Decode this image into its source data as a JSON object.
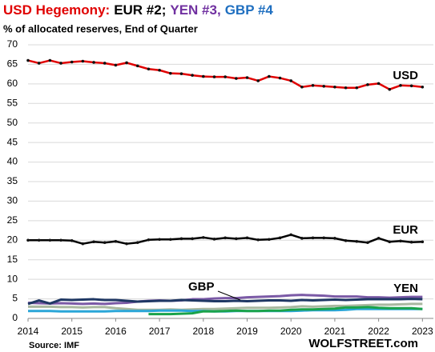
{
  "chart_data": {
    "type": "line",
    "title": [
      "USD Hegemony:",
      "EUR #2;",
      "YEN #3,",
      "GBP #4"
    ],
    "title_colors": [
      "#e00000",
      "#000000",
      "#7030a0",
      "#1f6fc0"
    ],
    "subtitle": "% of allocated reserves, End of Quarter",
    "source": "Source: IMF",
    "credit": "WOLFSTREET.com",
    "x": [
      2014,
      2014.25,
      2014.5,
      2014.75,
      2015,
      2015.25,
      2015.5,
      2015.75,
      2016,
      2016.25,
      2016.5,
      2016.75,
      2017,
      2017.25,
      2017.5,
      2017.75,
      2018,
      2018.25,
      2018.5,
      2018.75,
      2019,
      2019.25,
      2019.5,
      2019.75,
      2020,
      2020.25,
      2020.5,
      2020.75,
      2021,
      2021.25,
      2021.5,
      2021.75,
      2022,
      2022.25,
      2022.5,
      2022.75,
      2023
    ],
    "series": [
      {
        "name": "USD",
        "color": "#e00000",
        "markers": true,
        "values": [
          66,
          65.3,
          66,
          65.3,
          65.6,
          65.8,
          65.5,
          65.3,
          64.8,
          65.4,
          64.6,
          63.8,
          63.5,
          62.7,
          62.6,
          62.2,
          61.9,
          61.8,
          61.8,
          61.4,
          61.6,
          60.8,
          61.9,
          61.5,
          60.8,
          59.2,
          59.6,
          59.4,
          59.2,
          59.0,
          59.0,
          59.8,
          60.1,
          58.6,
          59.6,
          59.5,
          59.2
        ]
      },
      {
        "name": "EUR",
        "color": "#000000",
        "markers": true,
        "values": [
          20,
          20,
          20,
          20,
          19.9,
          19.1,
          19.6,
          19.4,
          19.7,
          19.1,
          19.4,
          20.1,
          20.2,
          20.2,
          20.4,
          20.4,
          20.7,
          20.3,
          20.6,
          20.4,
          20.6,
          20.1,
          20.2,
          20.6,
          21.4,
          20.5,
          20.6,
          20.6,
          20.5,
          19.9,
          19.7,
          19.4,
          20.5,
          19.6,
          19.8,
          19.5,
          19.6
        ]
      },
      {
        "color": "#a9b8a0",
        "values": [
          3.0,
          3.0,
          3.0,
          2.9,
          2.9,
          2.8,
          2.9,
          2.9,
          2.6,
          2.4,
          2.2,
          2.2,
          2.2,
          2.3,
          2.2,
          2.3,
          2.4,
          2.4,
          2.5,
          2.6,
          2.7,
          2.7,
          2.7,
          2.8,
          2.9,
          3.1,
          3.0,
          3.1,
          3.2,
          3.2,
          3.3,
          3.4,
          3.5,
          3.5,
          3.6,
          3.7,
          3.7
        ]
      },
      {
        "color": "#2aa6d8",
        "values": [
          1.9,
          1.9,
          1.9,
          1.8,
          1.8,
          1.8,
          1.8,
          1.8,
          1.9,
          1.9,
          1.9,
          1.9,
          2.0,
          2.0,
          2.0,
          1.9,
          1.9,
          1.8,
          1.8,
          1.9,
          1.9,
          1.9,
          1.9,
          1.9,
          1.9,
          2.0,
          2.1,
          2.1,
          2.1,
          2.2,
          2.4,
          2.4,
          2.4,
          2.4,
          2.4,
          2.4,
          2.4
        ]
      },
      {
        "color": "#1aa34a",
        "values": [
          null,
          null,
          null,
          null,
          null,
          null,
          null,
          null,
          null,
          null,
          null,
          1.1,
          1.1,
          1.1,
          1.2,
          1.3,
          1.8,
          1.8,
          1.9,
          2.0,
          1.9,
          1.9,
          2.0,
          2.0,
          2.2,
          2.3,
          2.3,
          2.4,
          2.5,
          2.8,
          2.8,
          2.9,
          2.7,
          2.6,
          2.6,
          2.6,
          2.4
        ]
      },
      {
        "name": "YEN",
        "color": "#7b5aa6",
        "values": [
          4.0,
          3.9,
          3.8,
          3.9,
          3.8,
          3.7,
          3.8,
          3.7,
          3.9,
          4.0,
          4.3,
          4.5,
          4.6,
          4.5,
          4.6,
          4.9,
          4.9,
          5.1,
          5.2,
          5.2,
          5.4,
          5.5,
          5.6,
          5.7,
          5.9,
          6.0,
          5.9,
          5.8,
          5.6,
          5.6,
          5.6,
          5.4,
          5.4,
          5.3,
          5.4,
          5.5,
          5.5
        ]
      },
      {
        "name": "GBP",
        "color": "#1f3864",
        "values": [
          3.7,
          4.6,
          3.8,
          4.8,
          4.7,
          4.8,
          4.9,
          4.7,
          4.7,
          4.5,
          4.3,
          4.4,
          4.5,
          4.5,
          4.7,
          4.6,
          4.5,
          4.4,
          4.4,
          4.5,
          4.4,
          4.5,
          4.6,
          4.6,
          4.5,
          4.7,
          4.6,
          4.7,
          4.8,
          4.7,
          4.8,
          4.9,
          4.9,
          4.9,
          4.9,
          5.0,
          4.9
        ]
      }
    ],
    "xlim": [
      2014,
      2023.25
    ],
    "xticks": [
      2014,
      2015,
      2016,
      2017,
      2018,
      2019,
      2020,
      2021,
      2022,
      2023
    ],
    "ylim": [
      0,
      70
    ],
    "yticks": [
      0,
      5,
      10,
      15,
      20,
      25,
      30,
      35,
      40,
      45,
      50,
      55,
      60,
      65,
      70
    ],
    "grid": true
  }
}
